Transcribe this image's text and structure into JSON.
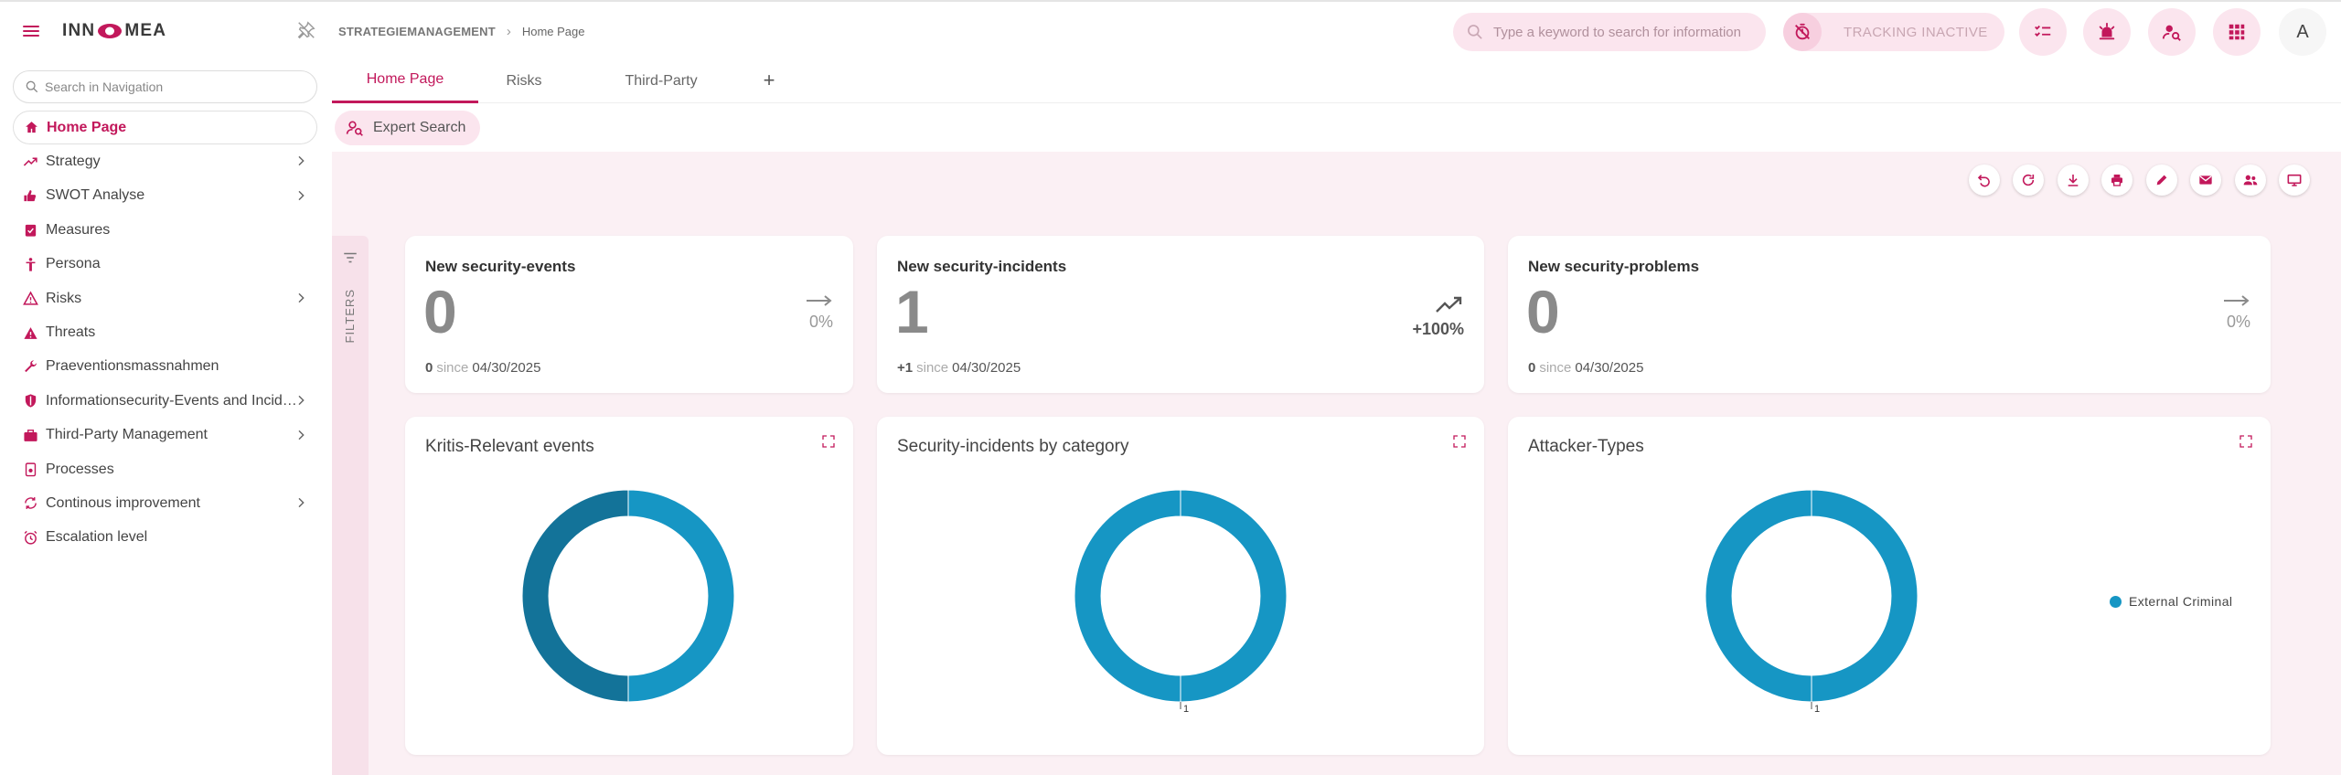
{
  "brand": {
    "name_left": "INN",
    "name_right": "MEA",
    "accent": "#c2185b"
  },
  "breadcrumb": {
    "root": "STRATEGIEMANAGEMENT",
    "current": "Home Page"
  },
  "top_search": {
    "placeholder": "Type a keyword to search for information"
  },
  "tracking": {
    "label": "TRACKING INACTIVE"
  },
  "user": {
    "initial": "A"
  },
  "toolbar_icons": [
    "tasks-icon",
    "alarm-icon",
    "person-search-icon",
    "apps-grid-icon"
  ],
  "sidebar": {
    "search_placeholder": "Search in Navigation",
    "items": [
      {
        "label": "Home Page",
        "icon": "home-icon",
        "active": true,
        "expandable": false
      },
      {
        "label": "Strategy",
        "icon": "trending-up-icon",
        "expandable": true
      },
      {
        "label": "SWOT Analyse",
        "icon": "thumbs-icon",
        "expandable": true
      },
      {
        "label": "Measures",
        "icon": "clipboard-check-icon",
        "expandable": false
      },
      {
        "label": "Persona",
        "icon": "person-icon",
        "expandable": false
      },
      {
        "label": "Risks",
        "icon": "warning-outline-icon",
        "expandable": true
      },
      {
        "label": "Threats",
        "icon": "warning-icon",
        "expandable": false
      },
      {
        "label": "Praeventionsmassnahmen",
        "icon": "wrench-icon",
        "expandable": false
      },
      {
        "label": "Informationsecurity-Events and Incid…",
        "icon": "shield-icon",
        "expandable": true
      },
      {
        "label": "Third-Party Management",
        "icon": "briefcase-icon",
        "expandable": true
      },
      {
        "label": "Processes",
        "icon": "process-icon",
        "expandable": false
      },
      {
        "label": "Continous improvement",
        "icon": "cycle-icon",
        "expandable": true
      },
      {
        "label": "Escalation level",
        "icon": "alarm-clock-icon",
        "expandable": false
      }
    ]
  },
  "tabs": [
    {
      "label": "Home Page",
      "active": true
    },
    {
      "label": "Risks",
      "active": false
    },
    {
      "label": "Third-Party",
      "active": false
    }
  ],
  "add_tab_label": "+",
  "expert_search": {
    "label": "Expert Search"
  },
  "dashboard_tools": [
    "undo-icon",
    "refresh-icon",
    "download-icon",
    "print-icon",
    "edit-icon",
    "mail-icon",
    "share-users-icon",
    "present-icon"
  ],
  "filters": {
    "label": "FILTERS"
  },
  "kpis": [
    {
      "title": "New security-events",
      "value": "0",
      "delta": "0",
      "since_label": "since",
      "date": "04/30/2025",
      "trend": "0%",
      "trend_dir": "flat"
    },
    {
      "title": "New security-incidents",
      "value": "1",
      "delta": "+1",
      "since_label": "since",
      "date": "04/30/2025",
      "trend": "+100%",
      "trend_dir": "up"
    },
    {
      "title": "New security-problems",
      "value": "0",
      "delta": "0",
      "since_label": "since",
      "date": "04/30/2025",
      "trend": "0%",
      "trend_dir": "flat"
    }
  ],
  "chart_data": [
    {
      "type": "pie",
      "title": "Kritis-Relevant events",
      "donut": true,
      "values": [
        1,
        1
      ],
      "colors": [
        "#1696c4",
        "#137399"
      ],
      "data_labels": []
    },
    {
      "type": "pie",
      "title": "Security-incidents by category",
      "donut": true,
      "values": [
        1
      ],
      "colors": [
        "#1696c4"
      ],
      "data_labels": [
        "1"
      ]
    },
    {
      "type": "pie",
      "title": "Attacker-Types",
      "donut": true,
      "categories": [
        "External Criminal"
      ],
      "values": [
        1
      ],
      "colors": [
        "#1696c4"
      ],
      "data_labels": [
        "1"
      ],
      "legend_position": "right"
    }
  ]
}
